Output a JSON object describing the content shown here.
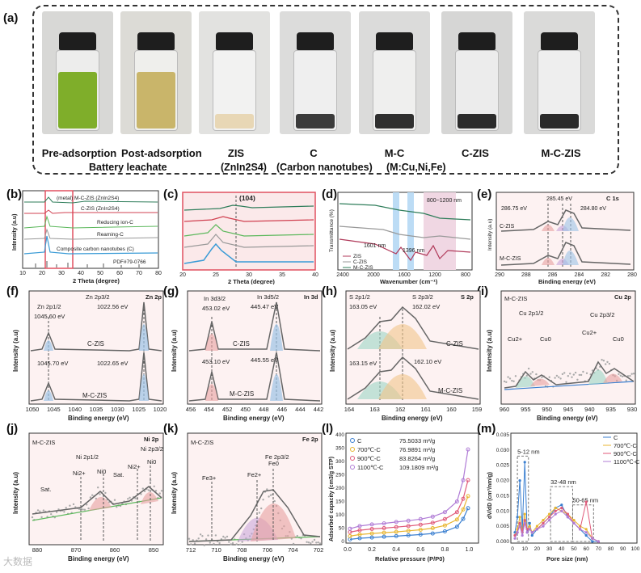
{
  "panel_a": {
    "label": "(a)",
    "vials": [
      {
        "caption": "Pre-adsorption",
        "liquid": "#7fae2a",
        "bg": "#d8d8d6"
      },
      {
        "caption": "Post-adsorption",
        "liquid": "#c9b56a",
        "bg": "#dcdbd6"
      },
      {
        "caption": "ZIS",
        "liquid": "#e8d7b5",
        "bg": "#e2e2e0"
      },
      {
        "caption": "C",
        "liquid": "#3b3b3b",
        "bg": "#dcdcdb"
      },
      {
        "caption": "M-C",
        "liquid": "#2f2f2f",
        "bg": "#dbdbda"
      },
      {
        "caption": "C-ZIS",
        "liquid": "#2b2b2b",
        "bg": "#d6d6d5"
      },
      {
        "caption": "M-C-ZIS",
        "liquid": "#2a2a2a",
        "bg": "#dadad9"
      }
    ],
    "sub_battery": "Battery leachate",
    "sub_zis": "(ZnIn2S4)",
    "sub_carbon": "(Carbon nanotubes)",
    "sub_mc": "(M:Cu,Ni,Fe)"
  },
  "panel_b": {
    "label": "(b)",
    "ylabel": "Intensity (a.u)",
    "xlabel": "2 Theta (degree)",
    "xticks": [
      "10",
      "20",
      "30",
      "40",
      "50",
      "60",
      "70",
      "80"
    ],
    "curves": [
      "(metal) M-C-ZIS (ZnIn2S4)",
      "C-ZIS (ZnIn2S4)",
      "Reducing ion-C",
      "Reaming-C",
      "Composite carbon nanotubes (C)",
      "PDF#79-0766"
    ]
  },
  "panel_c": {
    "label": "(c)",
    "peak": "(104)",
    "xlabel": "2 Theta (degree)",
    "xticks": [
      "20",
      "25",
      "30",
      "35",
      "40"
    ]
  },
  "panel_d": {
    "label": "(d)",
    "ylabel": "Transmittance (%)",
    "xlabel": "Wavenumber (cm⁻¹)",
    "xticks": [
      "2400",
      "2000",
      "1600",
      "1200",
      "800"
    ],
    "ann_800": "800~1200 nm",
    "ann_1601": "1601 nm",
    "ann_1396": "1396 nm",
    "legend": [
      "ZIS",
      "C-ZIS",
      "M-C-ZIS"
    ]
  },
  "panel_e": {
    "label": "(e)",
    "title": "C 1s",
    "ylabel": "Intensity (a.u)",
    "xlabel": "Binding energy (eV)",
    "xticks": [
      "290",
      "288",
      "286",
      "284",
      "282",
      "280"
    ],
    "peaks": [
      "285.45 eV",
      "286.75 eV",
      "284.80 eV"
    ],
    "samples": [
      "C-ZIS",
      "M-C-ZIS"
    ]
  },
  "panel_f": {
    "label": "(f)",
    "title": "Zn 2p",
    "ylabel": "Intensity (a.u)",
    "xlabel": "Binding energy (eV)",
    "xticks": [
      "1050",
      "1045",
      "1040",
      "1035",
      "1030",
      "1025",
      "1020"
    ],
    "top_labels": [
      "Zn 2p1/2",
      "1045.60 eV",
      "Zn 2p3/2",
      "1022.56 eV"
    ],
    "bottom_labels": [
      "1045.70 eV",
      "1022.65 eV"
    ],
    "samples": [
      "C-ZIS",
      "M-C-ZIS"
    ]
  },
  "panel_g": {
    "label": "(g)",
    "title": "In 3d",
    "ylabel": "Intensity (a.u)",
    "xlabel": "Binding energy (eV)",
    "xticks": [
      "456",
      "454",
      "452",
      "450",
      "448",
      "446",
      "444",
      "442"
    ],
    "top_labels": [
      "In 3d3/2",
      "453.02 eV",
      "In 3d5/2",
      "445.47 eV"
    ],
    "bottom_labels": [
      "453.10 eV",
      "445.55 eV"
    ],
    "samples": [
      "C-ZIS",
      "M-C-ZIS"
    ]
  },
  "panel_h": {
    "label": "(h)",
    "title": "S 2p",
    "ylabel": "Intensity (a.u)",
    "xlabel": "Binding energy (eV)",
    "xticks": [
      "164",
      "163",
      "162",
      "161",
      "160",
      "159"
    ],
    "top_labels": [
      "S 2p1/2",
      "163.05 eV",
      "S 2p3/2",
      "162.02 eV"
    ],
    "bottom_labels": [
      "163.15 eV",
      "162.10 eV"
    ],
    "samples": [
      "C-ZIS",
      "M-C-ZIS"
    ]
  },
  "panel_i": {
    "label": "(i)",
    "title": "Cu 2p",
    "sample": "M-C-ZIS",
    "ylabel": "Intensity (a.u)",
    "xlabel": "Binding energy (eV)",
    "xticks": [
      "960",
      "955",
      "950",
      "945",
      "940",
      "935",
      "930"
    ],
    "labels": [
      "Cu 2p1/2",
      "Cu 2p3/2",
      "Cu2+",
      "Cu0",
      "Cu2+",
      "Cu0"
    ]
  },
  "panel_j": {
    "label": "(j)",
    "title": "Ni 2p",
    "sample": "M-C-ZIS",
    "ylabel": "Intensity (a.u)",
    "xlabel": "Binding energy (eV)",
    "xticks": [
      "880",
      "870",
      "860",
      "850"
    ],
    "labels": [
      "Ni 2p1/2",
      "Ni 2p3/2",
      "Sat.",
      "Ni2+",
      "Ni0",
      "Sat.",
      "Ni2+",
      "Ni0"
    ]
  },
  "panel_k": {
    "label": "(k)",
    "title": "Fe 2p",
    "sample": "M-C-ZIS",
    "ylabel": "Intensity (a.u)",
    "xlabel": "Binding energy (eV)",
    "xticks": [
      "712",
      "710",
      "708",
      "706",
      "704",
      "702"
    ],
    "labels": [
      "Fe 2p3/2",
      "Fe3+",
      "Fe2+",
      "Fe0"
    ]
  },
  "chart_data": [
    {
      "type": "scatter",
      "panel": "(l)",
      "title": "",
      "xlabel": "Relative pressure (P/P0)",
      "ylabel": "Adsorbed capacity (cm3/g STP)",
      "xlim": [
        0.0,
        1.05
      ],
      "ylim": [
        0,
        400
      ],
      "xticks": [
        "0.0",
        "0.2",
        "0.4",
        "0.6",
        "0.8",
        "1.0"
      ],
      "yticks": [
        "0",
        "50",
        "100",
        "150",
        "200",
        "250",
        "300",
        "350",
        "400"
      ],
      "series": [
        {
          "name": "C",
          "area": "75.5033 m²/g",
          "color": "#3a7fd0",
          "x": [
            0.02,
            0.1,
            0.2,
            0.3,
            0.4,
            0.5,
            0.6,
            0.7,
            0.8,
            0.9,
            0.95,
            0.99
          ],
          "y": [
            8,
            12,
            15,
            18,
            20,
            23,
            26,
            30,
            38,
            55,
            85,
            125
          ]
        },
        {
          "name": "700℃-C",
          "area": "76.9891 m²/g",
          "color": "#e8b530",
          "x": [
            0.02,
            0.1,
            0.2,
            0.3,
            0.4,
            0.5,
            0.6,
            0.7,
            0.8,
            0.9,
            0.95,
            0.99
          ],
          "y": [
            20,
            26,
            30,
            33,
            36,
            40,
            44,
            50,
            60,
            82,
            120,
            170
          ]
        },
        {
          "name": "900℃-C",
          "area": "83.8264 m²/g",
          "color": "#e05a7a",
          "x": [
            0.02,
            0.1,
            0.2,
            0.3,
            0.4,
            0.5,
            0.6,
            0.7,
            0.8,
            0.9,
            0.95,
            0.99
          ],
          "y": [
            35,
            42,
            47,
            50,
            54,
            58,
            63,
            70,
            84,
            110,
            160,
            230
          ]
        },
        {
          "name": "1100℃-C",
          "area": "109.1809 m²/g",
          "color": "#b07cd6",
          "x": [
            0.02,
            0.1,
            0.2,
            0.3,
            0.4,
            0.5,
            0.6,
            0.7,
            0.8,
            0.9,
            0.95,
            0.99
          ],
          "y": [
            48,
            58,
            64,
            68,
            73,
            78,
            84,
            93,
            110,
            150,
            230,
            345
          ]
        }
      ]
    },
    {
      "type": "line",
      "panel": "(m)",
      "xlabel": "Pore size (nm)",
      "ylabel": "dV/dD (cm³/nm/g)",
      "xlim": [
        0,
        100
      ],
      "ylim": [
        0,
        0.035
      ],
      "xticks": [
        "0",
        "10",
        "20",
        "30",
        "40",
        "50",
        "60",
        "70",
        "80",
        "90",
        "100"
      ],
      "yticks": [
        "0.000",
        "0.005",
        "0.010",
        "0.015",
        "0.020",
        "0.025",
        "0.030",
        "0.035"
      ],
      "annotations": [
        "5-12 nm",
        "32-48 nm",
        "50-65 nm"
      ],
      "series": [
        {
          "name": "C",
          "color": "#3a7fd0",
          "x": [
            2,
            4,
            6,
            8,
            10,
            12,
            14,
            16,
            20,
            25,
            30,
            35,
            40,
            45,
            50,
            55,
            60,
            65,
            70
          ],
          "y": [
            0.003,
            0.008,
            0.02,
            0.004,
            0.026,
            0.003,
            0.006,
            0.002,
            0.004,
            0.006,
            0.008,
            0.011,
            0.012,
            0.008,
            0.006,
            0.004,
            0.002,
            0.0,
            0.0
          ]
        },
        {
          "name": "700℃-C",
          "color": "#e8b530",
          "x": [
            2,
            4,
            6,
            8,
            10,
            12,
            14,
            16,
            20,
            25,
            30,
            35,
            40,
            45,
            50,
            55,
            60,
            65,
            70
          ],
          "y": [
            0.002,
            0.004,
            0.008,
            0.003,
            0.009,
            0.004,
            0.005,
            0.003,
            0.005,
            0.007,
            0.009,
            0.011,
            0.01,
            0.009,
            0.007,
            0.005,
            0.004,
            0.001,
            0.0
          ]
        },
        {
          "name": "900℃-C",
          "color": "#e05a7a",
          "x": [
            2,
            4,
            6,
            8,
            10,
            12,
            14,
            16,
            20,
            25,
            30,
            35,
            40,
            45,
            50,
            55,
            60,
            65,
            70
          ],
          "y": [
            0.002,
            0.003,
            0.006,
            0.003,
            0.007,
            0.004,
            0.004,
            0.003,
            0.004,
            0.006,
            0.008,
            0.01,
            0.011,
            0.009,
            0.006,
            0.004,
            0.013,
            0.001,
            0.0
          ]
        },
        {
          "name": "1100℃-C",
          "color": "#b07cd6",
          "x": [
            2,
            4,
            6,
            8,
            10,
            12,
            14,
            16,
            20,
            25,
            30,
            35,
            40,
            45,
            50,
            55,
            60,
            65,
            70
          ],
          "y": [
            0.001,
            0.003,
            0.005,
            0.002,
            0.006,
            0.003,
            0.004,
            0.003,
            0.004,
            0.005,
            0.007,
            0.009,
            0.01,
            0.008,
            0.006,
            0.004,
            0.003,
            0.001,
            0.0
          ]
        }
      ]
    }
  ],
  "watermark": "大数据"
}
